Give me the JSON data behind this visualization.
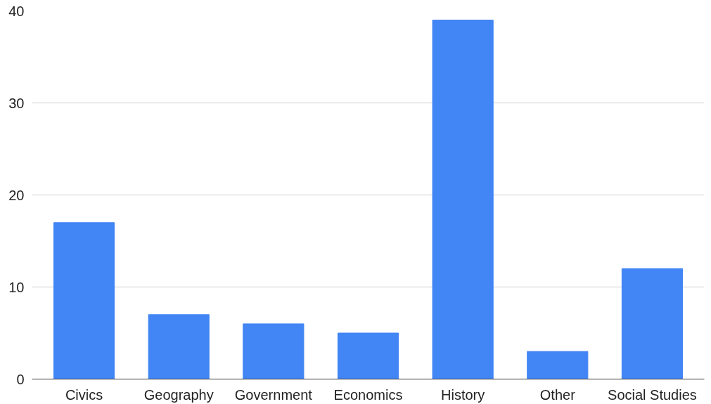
{
  "chart_data": {
    "type": "bar",
    "categories": [
      "Civics",
      "Geography",
      "Government",
      "Economics",
      "History",
      "Other",
      "Social Studies"
    ],
    "values": [
      17,
      7,
      6,
      5,
      39,
      3,
      12
    ],
    "color": "#4285f4",
    "ylim": [
      0,
      40
    ],
    "yticks": [
      0,
      10,
      20,
      30,
      40
    ],
    "grid": "y"
  }
}
